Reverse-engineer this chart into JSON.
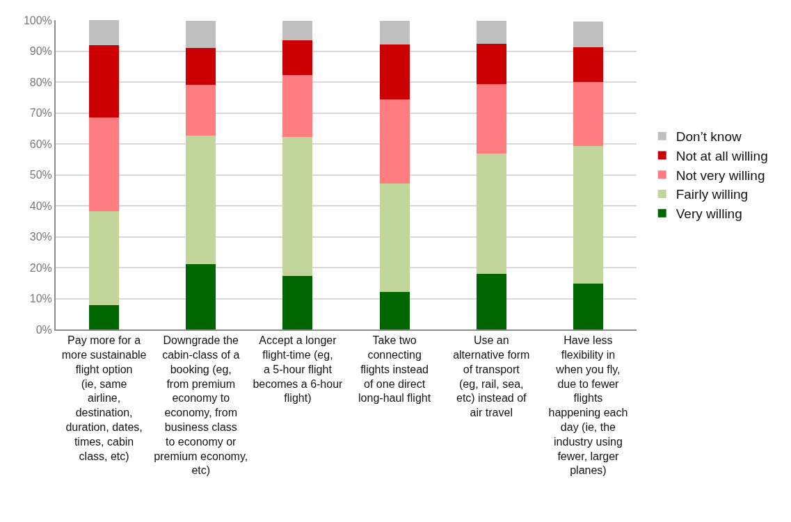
{
  "chart_data": {
    "type": "bar",
    "stacked": true,
    "categories": [
      "Pay more for a more sustainable flight option (ie, same airline, destination, duration, dates, times, cabin class, etc)",
      "Downgrade the cabin-class of a booking (eg, from premium economy to economy, from business class to economy or premium economy, etc)",
      "Accept a longer flight-time (eg, a 5-hour flight becomes a 6-hour flight)",
      "Take two connecting flights instead of one direct long-haul flight",
      "Use an alternative form of transport (eg, rail, sea, etc) instead of air travel",
      "Have less flexibility in when you fly, due to fewer flights happening each day (ie, the industry using fewer, larger planes)"
    ],
    "series": [
      {
        "name": "Very willing",
        "color": "#006600",
        "values": [
          7.8,
          21.1,
          17.2,
          12.1,
          18.0,
          14.8
        ]
      },
      {
        "name": "Fairly willing",
        "color": "#c2d69b",
        "values": [
          30.4,
          41.7,
          45.0,
          35.1,
          38.9,
          44.6
        ]
      },
      {
        "name": "Not very willing",
        "color": "#ff7c80",
        "values": [
          30.4,
          16.3,
          20.0,
          27.1,
          22.5,
          20.5
        ]
      },
      {
        "name": "Not at all willing",
        "color": "#cc0000",
        "values": [
          23.3,
          11.8,
          11.2,
          17.9,
          13.0,
          11.3
        ]
      },
      {
        "name": "Don’t know",
        "color": "#bfbfbf",
        "values": [
          8.1,
          8.9,
          6.4,
          7.5,
          7.3,
          8.4
        ]
      }
    ],
    "ylim": [
      0,
      100
    ],
    "yticks": [
      {
        "value": 0,
        "label": "0%"
      },
      {
        "value": 10,
        "label": "10%"
      },
      {
        "value": 20,
        "label": "20%"
      },
      {
        "value": 30,
        "label": "30%"
      },
      {
        "value": 40,
        "label": "40%"
      },
      {
        "value": 50,
        "label": "50%"
      },
      {
        "value": 60,
        "label": "60%"
      },
      {
        "value": 70,
        "label": "70%"
      },
      {
        "value": 80,
        "label": "80%"
      },
      {
        "value": 90,
        "label": "90%"
      },
      {
        "value": 100,
        "label": "100%"
      }
    ],
    "grid": "y",
    "legend": "right"
  }
}
